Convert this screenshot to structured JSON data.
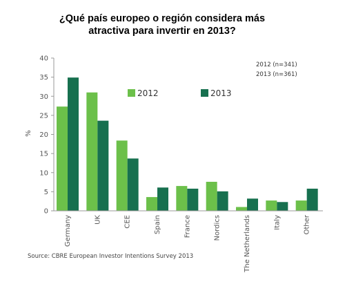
{
  "chart_data": {
    "type": "bar",
    "title_lines": [
      "¿Qué país europeo o región considera más",
      "atractiva para invertir en 2013?"
    ],
    "ylabel": "%",
    "ylim": [
      0,
      40
    ],
    "yticks": [
      "0",
      "5",
      "10",
      "15",
      "20",
      "25",
      "30",
      "35",
      "40"
    ],
    "categories": [
      "Germany",
      "UK",
      "CEE",
      "Spain",
      "France",
      "Nordics",
      "The Netherlands",
      "Italy",
      "Other"
    ],
    "series": [
      {
        "name": "2012",
        "color": "#6cc04a",
        "values": [
          27.3,
          31,
          18.4,
          3.6,
          6.5,
          7.6,
          1,
          2.7,
          2.7
        ]
      },
      {
        "name": "2013",
        "color": "#17704f",
        "values": [
          34.9,
          23.6,
          13.7,
          6.1,
          5.8,
          5.1,
          3.2,
          2.3,
          5.8
        ]
      }
    ],
    "sample_notes": [
      "2012 (n=341)",
      "2013 (n=361)"
    ],
    "legend_position": "top-center",
    "grid": false,
    "source": "Source: CBRE European Investor Intentions Survey 2013"
  }
}
